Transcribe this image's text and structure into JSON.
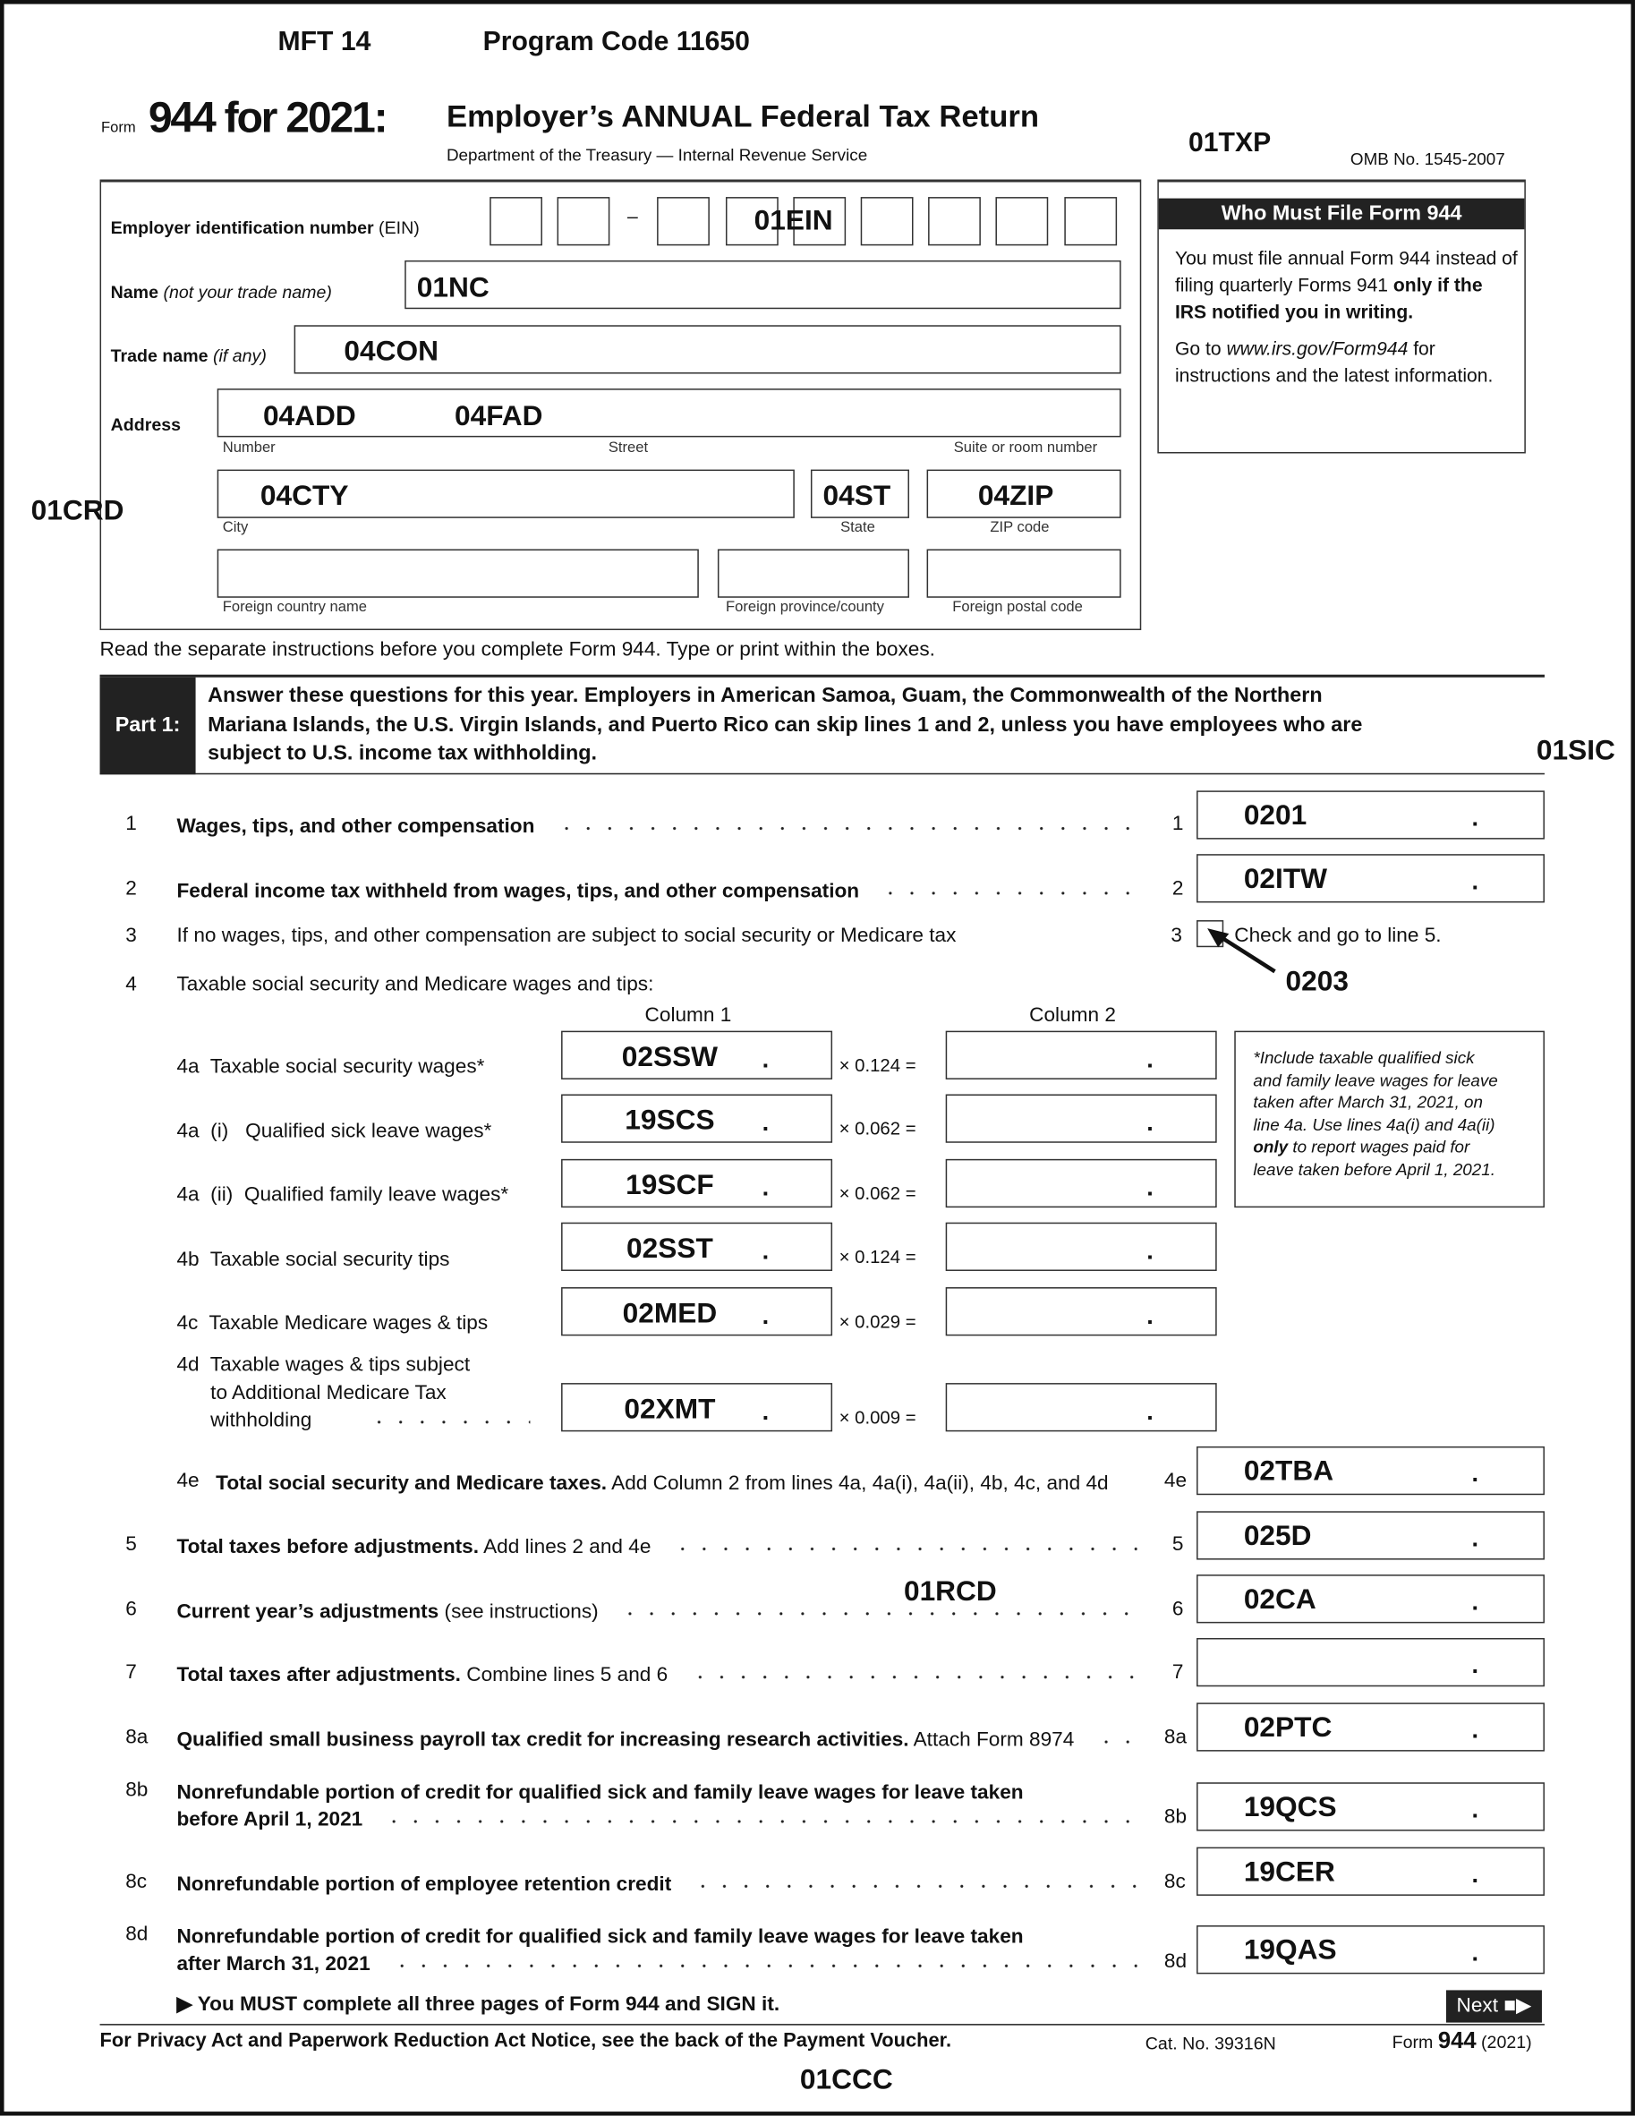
{
  "header": {
    "mft": "MFT 14",
    "program_code": "Program Code 11650",
    "form_word": "Form",
    "form_number": "944 for 2021:",
    "title": "Employer’s ANNUAL Federal Tax Return",
    "department": "Department of the Treasury — Internal Revenue Service",
    "txp_code": "01TXP",
    "omb": "OMB No. 1545-2007"
  },
  "identity": {
    "ein_label_bold": "Employer identification number",
    "ein_label_normal": " (EIN)",
    "ein_dash": "–",
    "ein_code": "01EIN",
    "name_label_bold": "Name",
    "name_label_italic": " (not your trade name)",
    "name_value": "01NC",
    "trade_label_bold": "Trade name",
    "trade_label_italic": " (if any)",
    "trade_value": "04CON",
    "address_label": "Address",
    "address_number_value": "04ADD",
    "address_street_value": "04FAD",
    "number_sub": "Number",
    "street_sub": "Street",
    "suite_sub": "Suite or room number",
    "city_value": "04CTY",
    "state_value": "04ST",
    "zip_value": "04ZIP",
    "city_sub": "City",
    "state_sub": "State",
    "zip_sub": "ZIP code",
    "foreign_country_sub": "Foreign country name",
    "foreign_province_sub": "Foreign province/county",
    "foreign_postal_sub": "Foreign postal code",
    "crd_code": "01CRD"
  },
  "who_must_file": {
    "title": "Who Must File Form 944",
    "p1_normal": "You must file annual Form 944 instead of filing quarterly Forms 941 ",
    "p1_bold": "only if the IRS notified you in writing.",
    "p2_a": "Go to ",
    "p2_link": "www.irs.gov/Form944",
    "p2_b": " for instructions and the latest information."
  },
  "instructions": "Read the separate instructions before you complete Form 944. Type or print within the boxes.",
  "part1": {
    "label": "Part 1:",
    "text": [
      "Answer these questions for this year. Employers in American Samoa, Guam, the Commonwealth of the Northern",
      "Mariana Islands, the U.S. Virgin Islands, and Puerto Rico can skip lines 1 and 2, unless you have employees who are",
      "subject to U.S. income tax withholding."
    ],
    "sic_code": "01SIC"
  },
  "lines": [
    {
      "num": "1",
      "bold": "Wages, tips, and other compensation",
      "normal": "",
      "ref": "1",
      "value": "0201"
    },
    {
      "num": "2",
      "bold": "Federal income tax withheld from wages, tips, and other compensation",
      "normal": "",
      "ref": "2",
      "value": "02ITW"
    },
    {
      "num": "4e",
      "bold": "Total social security and Medicare taxes.",
      "normal": " Add Column 2 from lines 4a, 4a(i), 4a(ii), 4b, 4c, and 4d",
      "ref": "4e",
      "value": "02TBA"
    },
    {
      "num": "5",
      "bold": "Total taxes before adjustments.",
      "normal": " Add lines 2 and 4e",
      "ref": "5",
      "value": "025D"
    },
    {
      "num": "6",
      "bold": "Current year’s adjustments",
      "normal": " (see instructions)",
      "ref": "6",
      "value": "02CA"
    },
    {
      "num": "7",
      "bold": "Total taxes after adjustments.",
      "normal": " Combine lines 5 and 6",
      "ref": "7",
      "value": ""
    },
    {
      "num": "8a",
      "bold": "Qualified small business payroll tax credit for increasing research activities.",
      "normal": " Attach Form 8974",
      "ref": "8a",
      "value": "02PTC"
    },
    {
      "num": "8b",
      "bold": "Nonrefundable portion of credit for qualified sick and family leave wages for leave taken|before April 1, 2021",
      "normal": "",
      "ref": "8b",
      "value": "19QCS"
    },
    {
      "num": "8c",
      "bold": "Nonrefundable portion of employee retention credit",
      "normal": "",
      "ref": "8c",
      "value": "19CER"
    },
    {
      "num": "8d",
      "bold": "Nonrefundable portion of credit for qualified sick and family leave wages for leave taken|after March 31, 2021",
      "normal": "",
      "ref": "8d",
      "value": "19QAS"
    }
  ],
  "line3": {
    "num": "3",
    "text": "If no wages, tips, and other compensation are subject to social security or Medicare tax",
    "ref": "3",
    "check_label": "Check and go to line 5.",
    "checked": false,
    "code": "0203"
  },
  "line4": {
    "num": "4",
    "text": "Taxable social security and Medicare wages and tips:",
    "column1": "Column 1",
    "column2": "Column 2",
    "rows": [
      {
        "label": "4a  Taxable social security wages*",
        "value": "02SSW",
        "multiplier": "× 0.124 ="
      },
      {
        "label": "4a  (i)   Qualified sick leave wages*",
        "value": "19SCS",
        "multiplier": "× 0.062 ="
      },
      {
        "label": "4a  (ii)  Qualified family leave wages*",
        "value": "19SCF",
        "multiplier": "× 0.062 ="
      },
      {
        "label": "4b  Taxable social security tips",
        "value": "02SST",
        "multiplier": "× 0.124 ="
      },
      {
        "label": "4c  Taxable Medicare wages & tips",
        "value": "02MED",
        "multiplier": "× 0.029 ="
      },
      {
        "label": "4d  Taxable wages & tips subject|      to Additional Medicare Tax|      withholding",
        "value": "02XMT",
        "multiplier": "× 0.009 ="
      }
    ],
    "note": [
      "*Include taxable qualified sick",
      "and family leave wages for leave",
      "taken after March 31, 2021, on",
      "line 4a. Use lines 4a(i) and 4a(ii)",
      "|only| to report wages paid for",
      "leave taken before April 1, 2021."
    ]
  },
  "rcd_code": "01RCD",
  "must_complete": "▶  You MUST complete all three pages of Form 944 and SIGN it.",
  "next_button": "Next ■▶",
  "footer": {
    "privacy": "For Privacy Act and Paperwork Reduction Act Notice, see the back of the Payment Voucher.",
    "cat": "Cat. No. 39316N",
    "form_word": "Form ",
    "form_num": "944",
    "year": " (2021)",
    "ccc_code": "01CCC"
  }
}
